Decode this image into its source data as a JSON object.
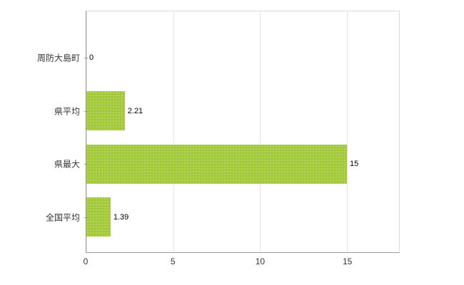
{
  "chart_data": {
    "type": "bar",
    "orientation": "horizontal",
    "title": "",
    "xlabel": "",
    "ylabel": "",
    "categories": [
      "周防大島町",
      "県平均",
      "県最大",
      "全国平均"
    ],
    "values": [
      0,
      2.21,
      15,
      1.39
    ],
    "value_labels": [
      "0",
      "2.21",
      "15",
      "1.39"
    ],
    "x_ticks": [
      0,
      5,
      10,
      15
    ],
    "x_tick_labels": [
      "0",
      "5",
      "10",
      "15"
    ],
    "xlim": [
      0,
      18
    ],
    "grid": true,
    "legend": false,
    "bar_color": "#a3c939",
    "gridline_color": "#e3e3e3",
    "axis_color": "#9b9b9b"
  }
}
